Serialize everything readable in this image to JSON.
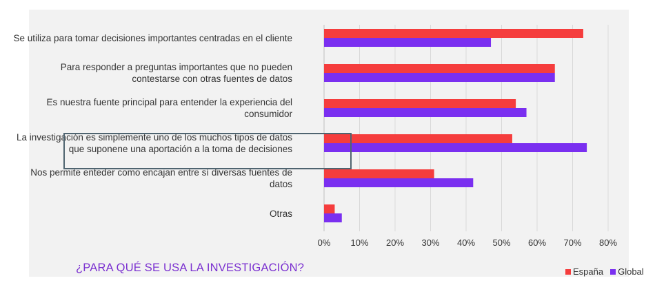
{
  "chart_data": {
    "type": "bar",
    "orientation": "horizontal",
    "title": "¿PARA QUÉ SE USA LA INVESTIGACIÓN?",
    "categories": [
      "Se utiliza para tomar decisiones importantes centradas en el cliente",
      "Para responder a preguntas importantes que no pueden\ncontestarse con otras fuentes de datos",
      "Es nuestra fuente principal para entender la experiencia del\nconsumidor",
      "La investigación es simplemente uno de los muchos tipos de datos\nque suponene una aportación a la toma de decisiones",
      "Nos permite enteder como encajan entre sí diversas fuentes de\ndatos",
      "Otras"
    ],
    "series": [
      {
        "name": "España",
        "color": "#f53d3d",
        "values": [
          73,
          65,
          54,
          53,
          31,
          3
        ]
      },
      {
        "name": "Global",
        "color": "#7a2ff0",
        "values": [
          47,
          65,
          57,
          74,
          42,
          5
        ]
      }
    ],
    "xlim": [
      0,
      80
    ],
    "xticks": [
      "0%",
      "10%",
      "20%",
      "30%",
      "40%",
      "50%",
      "60%",
      "70%",
      "80%"
    ],
    "grid": true,
    "legend_position": "bottom-right",
    "highlighted_category_index": 3
  }
}
